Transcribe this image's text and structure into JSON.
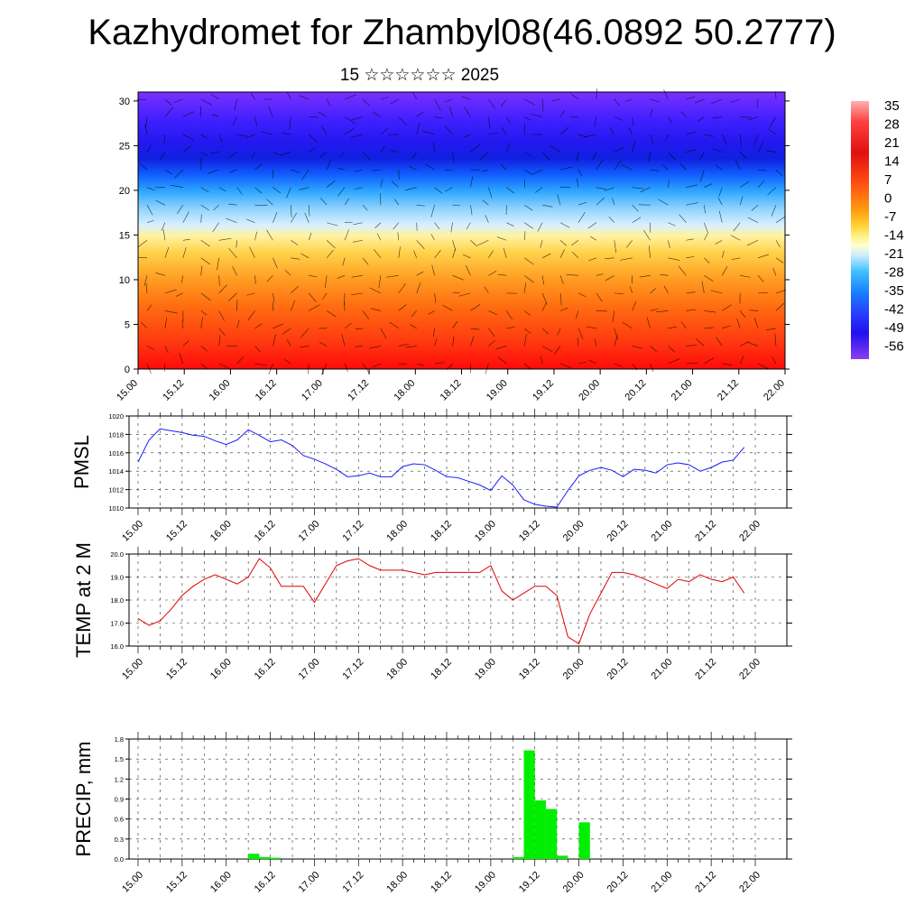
{
  "header": {
    "title": "Kazhydromet for Zhambyl08(46.0892 50.2777)",
    "subtitle": "15 ☆☆☆☆☆☆ 2025"
  },
  "colors": {
    "pmsl_line": "#1a1aff",
    "temp_line": "#e00000",
    "precip_bar": "#00ee00"
  },
  "x_ticks": [
    "15.00",
    "15.12",
    "16.00",
    "16.12",
    "17.00",
    "17.12",
    "18.00",
    "18.12",
    "19.00",
    "19.12",
    "20.00",
    "20.12",
    "21.00",
    "21.12",
    "22.00"
  ],
  "chart_data": [
    {
      "type": "heatmap",
      "panel": "vertical-section",
      "y_ticks": [
        "0",
        "5",
        "10",
        "15",
        "20",
        "25",
        "30"
      ],
      "ylim": [
        0,
        31
      ],
      "colorbar_labels": [
        "35",
        "28",
        "21",
        "14",
        "7",
        "0",
        "-7",
        "-14",
        "-21",
        "-28",
        "-35",
        "-42",
        "-49",
        "-56"
      ],
      "notes": "temperature shading with wind barbs"
    },
    {
      "type": "line",
      "ylabel": "PMSL",
      "ylim": [
        1010,
        1020
      ],
      "y_ticks": [
        "1010",
        "1012",
        "1014",
        "1016",
        "1018",
        "1020"
      ],
      "x_range_hours": [
        0,
        168
      ],
      "step_hours": 3,
      "values": [
        1015.0,
        1017.4,
        1018.6,
        1018.4,
        1018.2,
        1017.9,
        1017.8,
        1017.3,
        1016.9,
        1017.4,
        1018.5,
        1017.9,
        1017.2,
        1017.4,
        1016.8,
        1015.7,
        1015.3,
        1014.8,
        1014.2,
        1013.4,
        1013.5,
        1013.8,
        1013.4,
        1013.4,
        1014.5,
        1014.8,
        1014.7,
        1014.1,
        1013.4,
        1013.3,
        1012.9,
        1012.5,
        1011.9,
        1013.5,
        1012.5,
        1010.9,
        1010.4,
        1010.2,
        1010.1,
        1011.9,
        1013.5,
        1014.1,
        1014.4,
        1014.1,
        1013.4,
        1014.2,
        1014.1,
        1013.8,
        1014.7,
        1014.9,
        1014.7,
        1014.0,
        1014.4,
        1015.0,
        1015.2,
        1016.6
      ]
    },
    {
      "type": "line",
      "ylabel": "TEMP at 2 M",
      "ylim": [
        16,
        20
      ],
      "y_ticks": [
        "16.0",
        "17.0",
        "18.0",
        "19.0",
        "20.0"
      ],
      "x_range_hours": [
        0,
        168
      ],
      "step_hours": 3,
      "values": [
        17.2,
        16.9,
        17.1,
        17.6,
        18.2,
        18.6,
        18.9,
        19.1,
        18.9,
        18.7,
        19.0,
        19.8,
        19.4,
        18.6,
        18.6,
        18.6,
        17.9,
        18.7,
        19.5,
        19.7,
        19.8,
        19.5,
        19.3,
        19.3,
        19.3,
        19.2,
        19.1,
        19.2,
        19.2,
        19.2,
        19.2,
        19.2,
        19.5,
        18.4,
        18.0,
        18.3,
        18.6,
        18.6,
        18.2,
        16.4,
        16.1,
        17.4,
        18.3,
        19.2,
        19.2,
        19.1,
        18.9,
        18.7,
        18.5,
        18.9,
        18.8,
        19.1,
        18.9,
        18.8,
        19.0,
        18.3
      ]
    },
    {
      "type": "bar",
      "ylabel": "PRECIP, mm",
      "ylim": [
        0,
        1.8
      ],
      "y_ticks": [
        "0.0",
        "0.3",
        "0.6",
        "0.9",
        "1.2",
        "1.5",
        "1.8"
      ],
      "x_range_hours": [
        0,
        168
      ],
      "bar_width_hours": 3,
      "bars": [
        {
          "hour": 30,
          "value": 0.08
        },
        {
          "hour": 33,
          "value": 0.03
        },
        {
          "hour": 36,
          "value": 0.02
        },
        {
          "hour": 102,
          "value": 0.03
        },
        {
          "hour": 105,
          "value": 1.63
        },
        {
          "hour": 108,
          "value": 0.88
        },
        {
          "hour": 111,
          "value": 0.75
        },
        {
          "hour": 114,
          "value": 0.05
        },
        {
          "hour": 117,
          "value": 0.0
        },
        {
          "hour": 120,
          "value": 0.55
        }
      ]
    }
  ]
}
